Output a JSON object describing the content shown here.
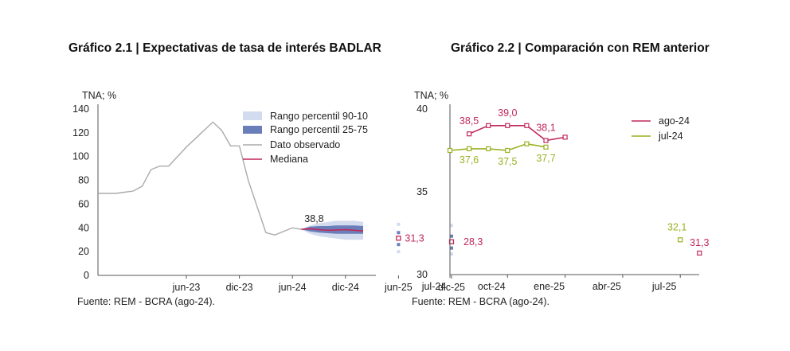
{
  "chart_data": [
    {
      "type": "line",
      "title": "Gráfico 2.1 | Expectativas de tasa de interés BADLAR",
      "ylabel": "TNA; %",
      "ylim": [
        0,
        140
      ],
      "yticks": [
        "0",
        "20",
        "40",
        "60",
        "80",
        "100",
        "120",
        "140"
      ],
      "xticks": [
        "jun-23",
        "dic-23",
        "jun-24",
        "dic-24",
        "jun-25",
        "dic-25"
      ],
      "legend": [
        "Rango percentil 90-10",
        "Rango percentil 25-75",
        "Dato observado",
        "Mediana"
      ],
      "legend_position": "top-right",
      "colors": {
        "observed": "#aaaaaa",
        "median": "#c0285a",
        "band_90_10": "#d3dbee",
        "band_25_75": "#6a7fba"
      },
      "observed": {
        "x": [
          "2022-08",
          "2022-09",
          "2022-10",
          "2022-11",
          "2022-12",
          "2023-01",
          "2023-02",
          "2023-03",
          "2023-04",
          "2023-05",
          "2023-06",
          "2023-07",
          "2023-08",
          "2023-09",
          "2023-10",
          "2023-11",
          "2023-12",
          "2024-01",
          "2024-02",
          "2024-03",
          "2024-04",
          "2024-05",
          "2024-06",
          "2024-07"
        ],
        "y": [
          69,
          69,
          69,
          70,
          71,
          75,
          89,
          92,
          92,
          100,
          108,
          115,
          122,
          129,
          122,
          109,
          109,
          80,
          58,
          36,
          34,
          37,
          40,
          38.8
        ]
      },
      "median": {
        "x": [
          "2024-07",
          "2024-08",
          "2024-09",
          "2024-10",
          "2024-11",
          "2024-12",
          "2025-01",
          "2025-02"
        ],
        "y": [
          38.8,
          39.2,
          38.5,
          38.0,
          38.2,
          38.5,
          38.0,
          37.5
        ]
      },
      "band_90_10": {
        "x": [
          "2024-07",
          "2024-08",
          "2024-09",
          "2024-10",
          "2024-11",
          "2024-12",
          "2025-01",
          "2025-02"
        ],
        "low": [
          38.8,
          35,
          33,
          32,
          31,
          30,
          30,
          30
        ],
        "high": [
          38.8,
          42,
          44,
          45,
          46,
          46,
          46,
          45
        ]
      },
      "band_25_75": {
        "x": [
          "2024-07",
          "2024-08",
          "2024-09",
          "2024-10",
          "2024-11",
          "2024-12",
          "2025-01",
          "2025-02"
        ],
        "low": [
          38.8,
          37,
          36,
          35.5,
          35,
          35,
          35,
          35
        ],
        "high": [
          38.8,
          41,
          41.5,
          41.5,
          42,
          42,
          42,
          41.5
        ]
      },
      "isolated_points": [
        {
          "x": "2025-06",
          "p10": 20,
          "p25": 26,
          "median": 31.3,
          "p75": 36,
          "p90": 43
        },
        {
          "x": "2025-12",
          "p10": 18,
          "p25": 23,
          "median": 28.3,
          "p75": 33,
          "p90": 42
        }
      ],
      "annotations": [
        {
          "text": "38,8",
          "x": "2024-07",
          "y": 38.8
        },
        {
          "text": "31,3",
          "x": "2025-06",
          "y": 31.3
        },
        {
          "text": "28,3",
          "x": "2025-12",
          "y": 28.3
        }
      ],
      "source": "Fuente: REM - BCRA (ago-24)."
    },
    {
      "type": "line",
      "title": "Gráfico 2.2 | Comparación con REM anterior",
      "ylabel": "TNA; %",
      "ylim": [
        30,
        40
      ],
      "yticks": [
        "30",
        "35",
        "40"
      ],
      "xticks": [
        "jul-24",
        "oct-24",
        "ene-25",
        "abr-25",
        "jul-25"
      ],
      "legend_position": "top-right",
      "series": [
        {
          "name": "ago-24",
          "color": "#c0285a",
          "x": [
            "2024-08",
            "2024-09",
            "2024-10",
            "2024-11",
            "2024-12",
            "2025-01"
          ],
          "y": [
            38.5,
            39.0,
            39.0,
            39.0,
            38.1,
            38.3
          ],
          "point": {
            "x": "2025-08",
            "y": 31.3
          }
        },
        {
          "name": "jul-24",
          "color": "#9ab021",
          "x": [
            "2024-07",
            "2024-08",
            "2024-09",
            "2024-10",
            "2024-11",
            "2024-12"
          ],
          "y": [
            37.5,
            37.6,
            37.6,
            37.5,
            37.9,
            37.7
          ],
          "point": {
            "x": "2025-07",
            "y": 32.1
          }
        }
      ],
      "annotations": [
        {
          "text": "38,5",
          "x": "2024-08",
          "y": 38.5,
          "series": "ago-24"
        },
        {
          "text": "39,0",
          "x": "2024-10",
          "y": 39.0,
          "series": "ago-24"
        },
        {
          "text": "38,1",
          "x": "2024-12",
          "y": 38.1,
          "series": "ago-24"
        },
        {
          "text": "37,6",
          "x": "2024-08",
          "y": 37.6,
          "series": "jul-24"
        },
        {
          "text": "37,5",
          "x": "2024-10",
          "y": 37.5,
          "series": "jul-24"
        },
        {
          "text": "37,7",
          "x": "2024-12",
          "y": 37.7,
          "series": "jul-24"
        },
        {
          "text": "32,1",
          "x": "2025-07",
          "y": 32.1,
          "series": "jul-24"
        },
        {
          "text": "31,3",
          "x": "2025-08",
          "y": 31.3,
          "series": "ago-24"
        }
      ],
      "source": "Fuente: REM - BCRA (ago-24)."
    }
  ]
}
